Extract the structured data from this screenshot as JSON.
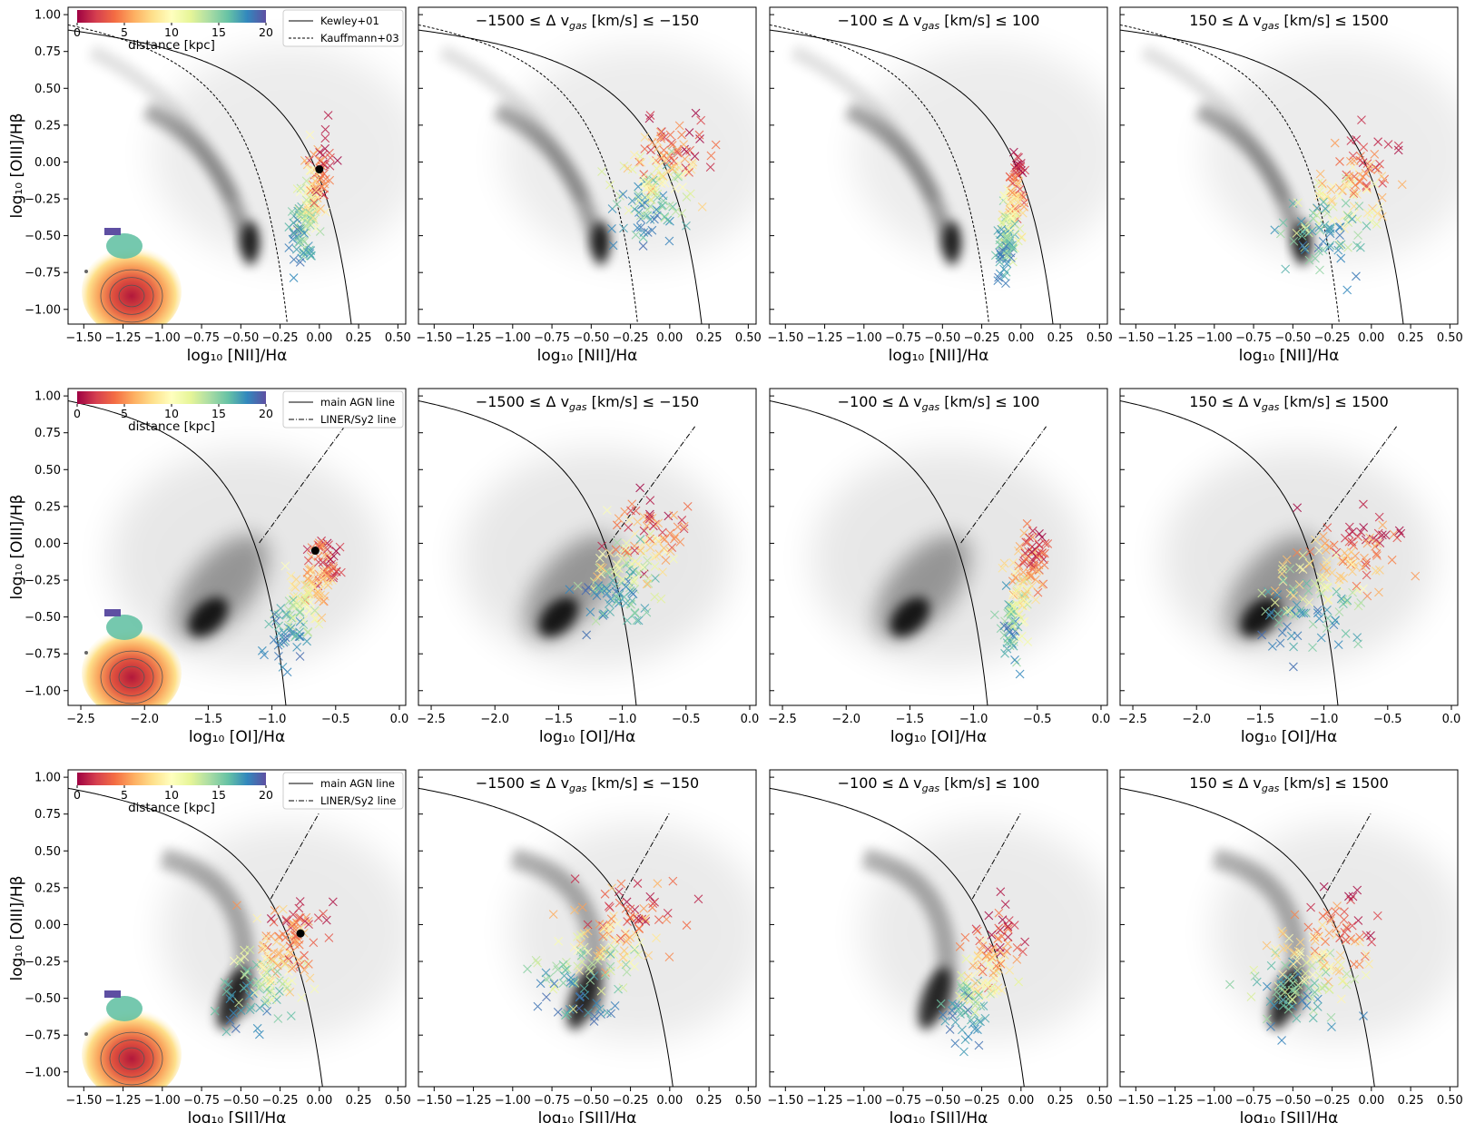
{
  "figure": {
    "ylabel": "log₁₀ [OIII]/Hβ",
    "colorbar": {
      "label": "distance [kpc]",
      "ticks": [
        "0",
        "5",
        "10",
        "15",
        "20"
      ],
      "range": [
        0,
        20
      ]
    },
    "columns": [
      {
        "title": ""
      },
      {
        "title": "−1500 ≤ Δ v_gas [km/s] ≤ −150"
      },
      {
        "title": "−100 ≤ Δ v_gas [km/s] ≤ 100"
      },
      {
        "title": "150 ≤ Δ v_gas [km/s] ≤ 1500"
      }
    ],
    "rows": [
      {
        "xlabel": "log₁₀ [NII]/Hα",
        "xlim": [
          -1.6,
          0.55
        ],
        "xticks": [
          -1.5,
          -1.25,
          -1.0,
          -0.75,
          -0.5,
          -0.25,
          0.0,
          0.25,
          0.5
        ],
        "xticklabels": [
          "−1.50",
          "−1.25",
          "−1.00",
          "−0.75",
          "−0.50",
          "−0.25",
          "0.00",
          "0.25",
          "0.50"
        ],
        "legend": [
          "Kewley+01",
          "Kauffmann+03"
        ],
        "marker": [
          0.0,
          -0.05
        ]
      },
      {
        "xlabel": "log₁₀ [OI]/Hα",
        "xlim": [
          -2.6,
          0.05
        ],
        "xticks": [
          -2.5,
          -2.0,
          -1.5,
          -1.0,
          -0.5,
          0.0
        ],
        "xticklabels": [
          "−2.5",
          "−2.0",
          "−1.5",
          "−1.0",
          "−0.5",
          "0.0"
        ],
        "legend": [
          "main AGN line",
          "LINER/Sy2 line"
        ],
        "marker": [
          -0.66,
          -0.05
        ]
      },
      {
        "xlabel": "log₁₀ [SII]/Hα",
        "xlim": [
          -1.6,
          0.55
        ],
        "xticks": [
          -1.5,
          -1.25,
          -1.0,
          -0.75,
          -0.5,
          -0.25,
          0.0,
          0.25,
          0.5
        ],
        "xticklabels": [
          "−1.50",
          "−1.25",
          "−1.00",
          "−0.75",
          "−0.50",
          "−0.25",
          "0.00",
          "0.25",
          "0.50"
        ],
        "legend": [
          "main AGN line",
          "LINER/Sy2 line"
        ],
        "marker": [
          -0.12,
          -0.06
        ]
      }
    ],
    "ylim": [
      -1.1,
      1.05
    ],
    "yticks": [
      1.0,
      0.75,
      0.5,
      0.25,
      0.0,
      -0.25,
      -0.5,
      -0.75,
      -1.0
    ],
    "yticklabels": [
      "1.00",
      "0.75",
      "0.50",
      "0.25",
      "0.00",
      "−0.25",
      "−0.50",
      "−0.75",
      "−1.00"
    ]
  },
  "chart_data": {
    "type": "scatter",
    "xlabels": [
      "log₁₀ [NII]/Hα",
      "log₁₀ [OI]/Hα",
      "log₁₀ [SII]/Hα"
    ],
    "ylabel": "log₁₀ [OIII]/Hβ",
    "ylim": [
      -1.1,
      1.05
    ],
    "xlims": [
      [
        -1.6,
        0.55
      ],
      [
        -2.6,
        0.05
      ],
      [
        -1.6,
        0.55
      ]
    ],
    "colorscale": "Spectral (red=0 kpc, blue=20 kpc)",
    "point_clouds": [
      {
        "row": 0,
        "col": 0,
        "cx": -0.05,
        "cy": -0.25,
        "sx": 0.09,
        "sy": 0.33,
        "tilt": 0.9,
        "n": 170
      },
      {
        "row": 0,
        "col": 1,
        "cx": -0.05,
        "cy": -0.1,
        "sx": 0.23,
        "sy": 0.3,
        "tilt": 0.5,
        "n": 170
      },
      {
        "row": 0,
        "col": 2,
        "cx": -0.06,
        "cy": -0.35,
        "sx": 0.06,
        "sy": 0.3,
        "tilt": 1.0,
        "n": 150
      },
      {
        "row": 0,
        "col": 3,
        "cx": -0.18,
        "cy": -0.25,
        "sx": 0.3,
        "sy": 0.32,
        "tilt": 0.6,
        "n": 160
      },
      {
        "row": 1,
        "col": 0,
        "cx": -0.72,
        "cy": -0.35,
        "sx": 0.17,
        "sy": 0.3,
        "tilt": 1.1,
        "n": 170
      },
      {
        "row": 1,
        "col": 1,
        "cx": -0.9,
        "cy": -0.1,
        "sx": 0.35,
        "sy": 0.3,
        "tilt": 0.6,
        "n": 170
      },
      {
        "row": 1,
        "col": 2,
        "cx": -0.62,
        "cy": -0.35,
        "sx": 0.12,
        "sy": 0.33,
        "tilt": 1.0,
        "n": 150
      },
      {
        "row": 1,
        "col": 3,
        "cx": -0.95,
        "cy": -0.25,
        "sx": 0.45,
        "sy": 0.32,
        "tilt": 0.6,
        "n": 170
      },
      {
        "row": 2,
        "col": 0,
        "cx": -0.28,
        "cy": -0.25,
        "sx": 0.22,
        "sy": 0.32,
        "tilt": 0.9,
        "n": 170
      },
      {
        "row": 2,
        "col": 1,
        "cx": -0.4,
        "cy": -0.15,
        "sx": 0.35,
        "sy": 0.33,
        "tilt": 0.6,
        "n": 170
      },
      {
        "row": 2,
        "col": 2,
        "cx": -0.25,
        "cy": -0.35,
        "sx": 0.17,
        "sy": 0.3,
        "tilt": 0.9,
        "n": 150
      },
      {
        "row": 2,
        "col": 3,
        "cx": -0.35,
        "cy": -0.25,
        "sx": 0.32,
        "sy": 0.33,
        "tilt": 0.6,
        "n": 170
      }
    ]
  }
}
